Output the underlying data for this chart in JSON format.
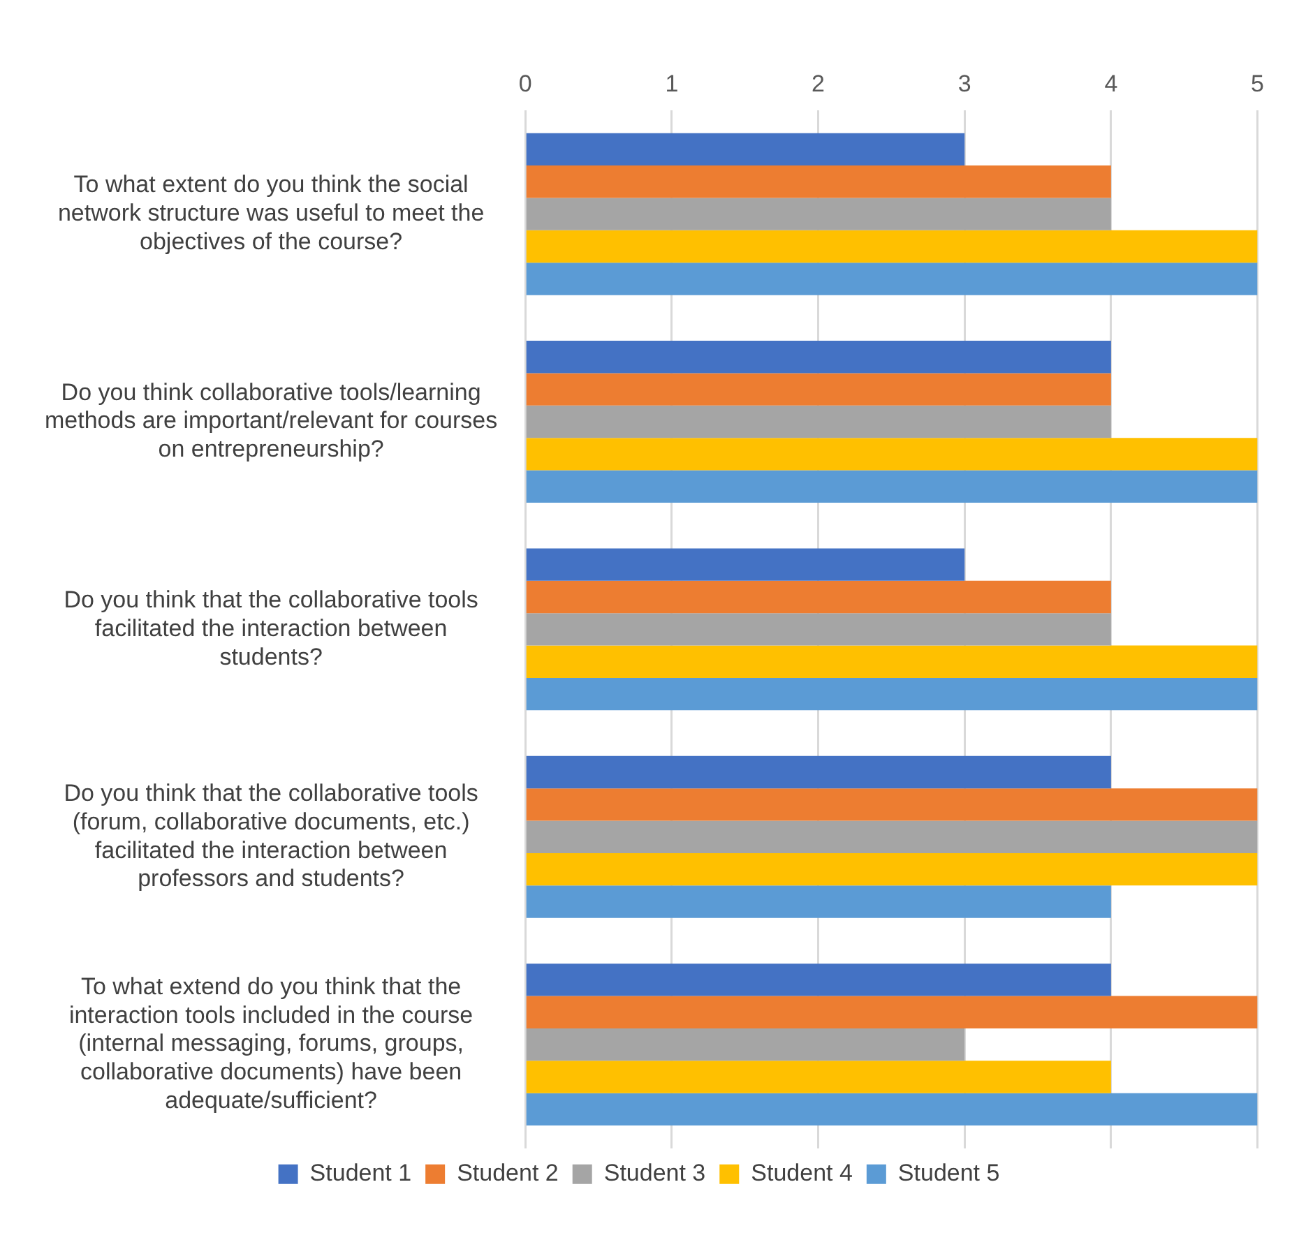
{
  "chart_data": {
    "type": "bar",
    "orientation": "horizontal",
    "categories": [
      "To what extent do you think the social network structure was useful to meet the objectives of the course?",
      "Do you think collaborative tools/learning methods are important/relevant for courses on entrepreneurship?",
      "Do you think that the collaborative tools facilitated the interaction between students?",
      "Do you think that the collaborative tools (forum, collaborative documents, etc.) facilitated the interaction between professors and students?",
      "To what extend do you think that the interaction tools included in the course (internal messaging, forums, groups, collaborative documents) have been adequate/sufficient?"
    ],
    "series": [
      {
        "name": "Student 1",
        "color": "#4472c4",
        "values": [
          3,
          4,
          3,
          4,
          4
        ]
      },
      {
        "name": "Student 2",
        "color": "#ed7d31",
        "values": [
          4,
          4,
          4,
          5,
          5
        ]
      },
      {
        "name": "Student 3",
        "color": "#a5a5a5",
        "values": [
          4,
          4,
          4,
          5,
          3
        ]
      },
      {
        "name": "Student 4",
        "color": "#ffc000",
        "values": [
          5,
          5,
          5,
          5,
          4
        ]
      },
      {
        "name": "Student 5",
        "color": "#5b9bd5",
        "values": [
          5,
          5,
          5,
          4,
          5
        ]
      }
    ],
    "xlim": [
      0,
      5
    ],
    "xticks": [
      0,
      1,
      2,
      3,
      4,
      5
    ],
    "grid": "x",
    "legend": "bottom"
  }
}
